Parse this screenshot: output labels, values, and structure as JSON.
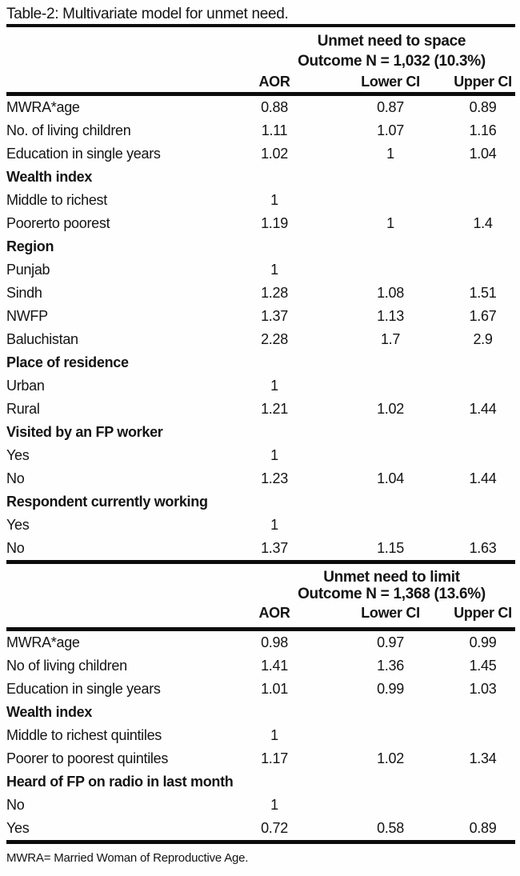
{
  "title": "Table-2: Multivariate model for unmet need.",
  "footnote": "MWRA= Married Woman of Reproductive Age.",
  "sections": [
    {
      "heading": "Unmet need to space",
      "subheading": "Outcome N = 1,032 (10.3%)",
      "columns": [
        "AOR",
        "Lower CI",
        "Upper CI"
      ],
      "rows": [
        {
          "label": "MWRA*age",
          "aor": "0.88",
          "lower": "0.87",
          "upper": "0.89"
        },
        {
          "label": "No. of living children",
          "aor": "1.11",
          "lower": "1.07",
          "upper": "1.16"
        },
        {
          "label": "Education in single years",
          "aor": "1.02",
          "lower": "1",
          "upper": "1.04"
        },
        {
          "label": "Wealth index",
          "header": true
        },
        {
          "label": "Middle to richest",
          "aor": "1",
          "lower": "",
          "upper": ""
        },
        {
          "label": "Poorerto poorest",
          "aor": "1.19",
          "lower": "1",
          "upper": "1.4"
        },
        {
          "label": "Region",
          "header": true
        },
        {
          "label": "Punjab",
          "aor": "1",
          "lower": "",
          "upper": ""
        },
        {
          "label": "Sindh",
          "aor": "1.28",
          "lower": "1.08",
          "upper": "1.51"
        },
        {
          "label": "NWFP",
          "aor": "1.37",
          "lower": "1.13",
          "upper": "1.67"
        },
        {
          "label": "Baluchistan",
          "aor": "2.28",
          "lower": "1.7",
          "upper": "2.9"
        },
        {
          "label": "Place of residence",
          "header": true
        },
        {
          "label": "Urban",
          "aor": "1",
          "lower": "",
          "upper": ""
        },
        {
          "label": "Rural",
          "aor": "1.21",
          "lower": "1.02",
          "upper": "1.44"
        },
        {
          "label": "Visited by an FP worker",
          "header": true
        },
        {
          "label": "Yes",
          "aor": "1",
          "lower": "",
          "upper": ""
        },
        {
          "label": "No",
          "aor": "1.23",
          "lower": "1.04",
          "upper": "1.44"
        },
        {
          "label": "Respondent currently working",
          "header": true
        },
        {
          "label": "Yes",
          "aor": "1",
          "lower": "",
          "upper": ""
        },
        {
          "label": "No",
          "aor": "1.37",
          "lower": "1.15",
          "upper": "1.63"
        }
      ]
    },
    {
      "heading": "Unmet need to limit",
      "subheading": "Outcome N = 1,368 (13.6%)",
      "columns": [
        "AOR",
        "Lower CI",
        "Upper CI"
      ],
      "rows": [
        {
          "label": "MWRA*age",
          "aor": "0.98",
          "lower": "0.97",
          "upper": "0.99"
        },
        {
          "label": "No of living children",
          "aor": "1.41",
          "lower": "1.36",
          "upper": "1.45"
        },
        {
          "label": "Education in single years",
          "aor": "1.01",
          "lower": "0.99",
          "upper": "1.03"
        },
        {
          "label": "Wealth index",
          "header": true
        },
        {
          "label": "Middle to richest quintiles",
          "aor": "1",
          "lower": "",
          "upper": ""
        },
        {
          "label": "Poorer to poorest quintiles",
          "aor": "1.17",
          "lower": "1.02",
          "upper": "1.34"
        },
        {
          "label": "Heard of FP on radio in last month",
          "header": true
        },
        {
          "label": "No",
          "aor": "1",
          "lower": "",
          "upper": ""
        },
        {
          "label": "Yes",
          "aor": "0.72",
          "lower": "0.58",
          "upper": "0.89"
        }
      ]
    }
  ],
  "chart_data": {
    "type": "table",
    "title": "Table-2: Multivariate model for unmet need.",
    "notes": "Two outcome panels: unmet need to space (N=1,032, 10.3%) and unmet need to limit (N=1,368, 13.6%); columns AOR, Lower CI, Upper CI"
  }
}
